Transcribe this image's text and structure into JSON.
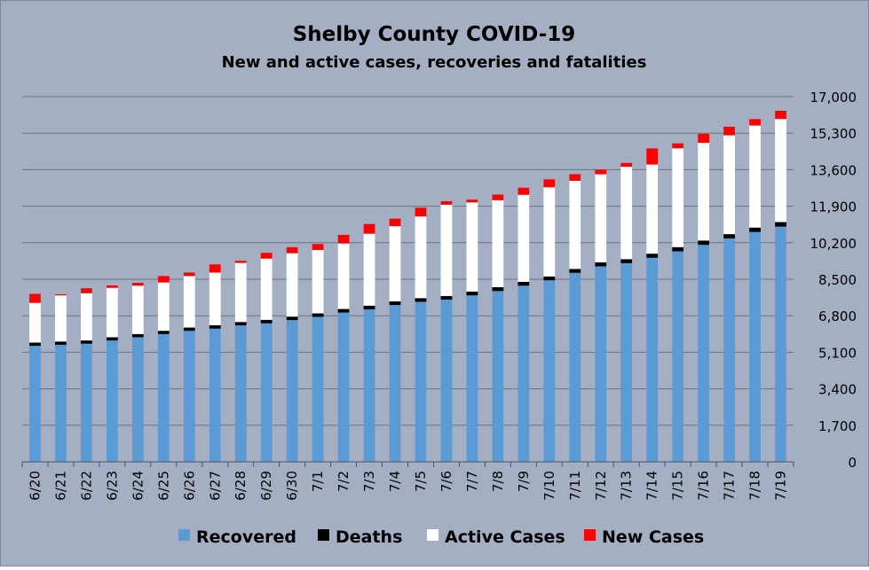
{
  "chart_data": {
    "type": "bar",
    "stacked": true,
    "title": "Shelby County COVID-19",
    "subtitle": "New and active cases, recoveries and fatalities",
    "xlabel": "",
    "ylabel": "",
    "ylim": [
      0,
      17000
    ],
    "yticks": [
      "0",
      "1,700",
      "3,400",
      "5,100",
      "6,800",
      "8,500",
      "10,200",
      "11,900",
      "13,600",
      "15,300",
      "17,000"
    ],
    "grid": true,
    "y_axis_side": "right",
    "legend_position": "bottom",
    "categories": [
      "6/20",
      "6/21",
      "6/22",
      "6/23",
      "6/24",
      "6/25",
      "6/26",
      "6/27",
      "6/28",
      "6/29",
      "6/30",
      "7/1",
      "7/2",
      "7/3",
      "7/4",
      "7/5",
      "7/6",
      "7/7",
      "7/8",
      "7/9",
      "7/10",
      "7/11",
      "7/12",
      "7/13",
      "7/14",
      "7/15",
      "7/16",
      "7/17",
      "7/18",
      "7/19"
    ],
    "series": [
      {
        "name": "Recovered",
        "color": "#5b9bd5",
        "values": [
          5400,
          5450,
          5500,
          5650,
          5800,
          5950,
          6100,
          6200,
          6350,
          6450,
          6600,
          6750,
          6950,
          7100,
          7300,
          7450,
          7550,
          7750,
          7950,
          8200,
          8450,
          8800,
          9100,
          9250,
          9500,
          9800,
          10100,
          10400,
          10700,
          10950
        ]
      },
      {
        "name": "Deaths",
        "color": "#000000",
        "values": [
          150,
          150,
          150,
          150,
          150,
          150,
          150,
          160,
          160,
          160,
          160,
          160,
          165,
          170,
          170,
          170,
          170,
          175,
          180,
          180,
          180,
          180,
          185,
          185,
          190,
          195,
          200,
          200,
          205,
          210
        ]
      },
      {
        "name": "Active Cases",
        "color": "#ffffff",
        "values": [
          1850,
          2150,
          2200,
          2300,
          2250,
          2250,
          2400,
          2450,
          2750,
          2850,
          2950,
          2950,
          3050,
          3350,
          3500,
          3800,
          4250,
          4150,
          4050,
          4050,
          4150,
          4100,
          4100,
          4300,
          4150,
          4600,
          4550,
          4600,
          4750,
          4800
        ]
      },
      {
        "name": "New Cases",
        "color": "#ff0000",
        "values": [
          420,
          50,
          230,
          110,
          130,
          300,
          160,
          380,
          100,
          270,
          280,
          280,
          400,
          450,
          350,
          410,
          160,
          130,
          260,
          330,
          370,
          310,
          210,
          180,
          750,
          230,
          420,
          400,
          300,
          380
        ]
      }
    ]
  }
}
